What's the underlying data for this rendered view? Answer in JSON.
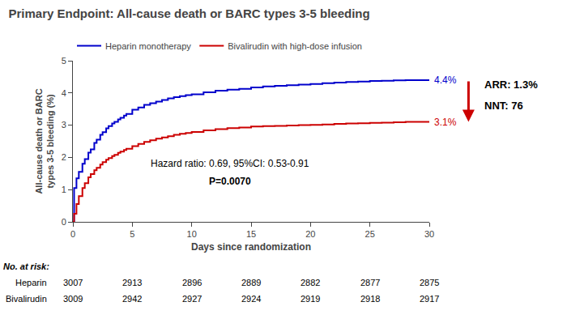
{
  "chart_data": {
    "type": "step",
    "title": "Primary Endpoint: All-cause death or BARC types 3-5 bleeding",
    "x_label": "Days since randomization",
    "y_label": "All-cause death or BARC\ntypes 3-5 bleeding (%)",
    "x": [
      0,
      0.1,
      0.3,
      0.5,
      0.8,
      1,
      1.3,
      1.5,
      1.8,
      2,
      2.3,
      2.5,
      2.8,
      3,
      3.3,
      3.5,
      3.8,
      4,
      4.3,
      4.5,
      5,
      5.5,
      6,
      6.5,
      7,
      7.5,
      8,
      8.5,
      9,
      9.5,
      10,
      11,
      12,
      13,
      14,
      15,
      16,
      17,
      18,
      19,
      20,
      21,
      22,
      23,
      24,
      25,
      26,
      27,
      28,
      29,
      30
    ],
    "series": [
      {
        "name": "Heparin monotherapy",
        "color": "#0000CC",
        "values": [
          0,
          1.05,
          1.35,
          1.55,
          1.8,
          1.95,
          2.15,
          2.25,
          2.45,
          2.55,
          2.7,
          2.78,
          2.9,
          2.97,
          3.05,
          3.1,
          3.18,
          3.23,
          3.3,
          3.35,
          3.48,
          3.55,
          3.63,
          3.68,
          3.73,
          3.78,
          3.83,
          3.87,
          3.9,
          3.93,
          3.96,
          4.02,
          4.07,
          4.1,
          4.13,
          4.17,
          4.2,
          4.22,
          4.24,
          4.26,
          4.28,
          4.3,
          4.32,
          4.34,
          4.35,
          4.37,
          4.38,
          4.39,
          4.4,
          4.4,
          4.4
        ],
        "value_labels": [
          null,
          null,
          null,
          null,
          null,
          null,
          null,
          null,
          null,
          null,
          null,
          null,
          null,
          null,
          null,
          null,
          null,
          null,
          null,
          null,
          null,
          null,
          null,
          null,
          null,
          null,
          null,
          null,
          null,
          null,
          null,
          null,
          null,
          null,
          null,
          null,
          null,
          null,
          null,
          null,
          null,
          null,
          null,
          null,
          null,
          null,
          null,
          null,
          null,
          null,
          "4.4%"
        ]
      },
      {
        "name": "Bivalirudin with high-dose infusion",
        "color": "#CC0000",
        "values": [
          0,
          0.25,
          0.55,
          0.8,
          1.05,
          1.2,
          1.38,
          1.48,
          1.6,
          1.68,
          1.78,
          1.85,
          1.93,
          1.98,
          2.04,
          2.08,
          2.14,
          2.18,
          2.23,
          2.27,
          2.35,
          2.42,
          2.48,
          2.53,
          2.58,
          2.62,
          2.66,
          2.7,
          2.73,
          2.76,
          2.79,
          2.84,
          2.88,
          2.91,
          2.93,
          2.96,
          2.97,
          2.98,
          2.99,
          3.0,
          3.01,
          3.02,
          3.04,
          3.05,
          3.06,
          3.07,
          3.08,
          3.09,
          3.1,
          3.1,
          3.1
        ],
        "value_labels": [
          null,
          null,
          null,
          null,
          null,
          null,
          null,
          null,
          null,
          null,
          null,
          null,
          null,
          null,
          null,
          null,
          null,
          null,
          null,
          null,
          null,
          null,
          null,
          null,
          null,
          null,
          null,
          null,
          null,
          null,
          null,
          null,
          null,
          null,
          null,
          null,
          null,
          null,
          null,
          null,
          null,
          null,
          null,
          null,
          null,
          null,
          null,
          null,
          null,
          null,
          "3.1%"
        ]
      }
    ],
    "xlim": [
      0,
      30
    ],
    "ylim": [
      0,
      5
    ],
    "xticks": [
      0,
      5,
      10,
      15,
      20,
      25,
      30
    ],
    "yticks": [
      0,
      1,
      2,
      3,
      4,
      5
    ],
    "grid": false,
    "legend": "top",
    "annotations": [
      "Hazard ratio: 0.69, 95%CI: 0.53-0.91",
      "P=0.0070",
      "ARR: 1.3%",
      "NNT: 76"
    ],
    "at_risk": {
      "label": "No. at risk:",
      "rows": [
        {
          "name": "Heparin",
          "values": [
            3007,
            2913,
            2896,
            2889,
            2882,
            2877,
            2875
          ]
        },
        {
          "name": "Bivalirudin",
          "values": [
            3009,
            2942,
            2927,
            2924,
            2919,
            2918,
            2917
          ]
        }
      ]
    }
  }
}
